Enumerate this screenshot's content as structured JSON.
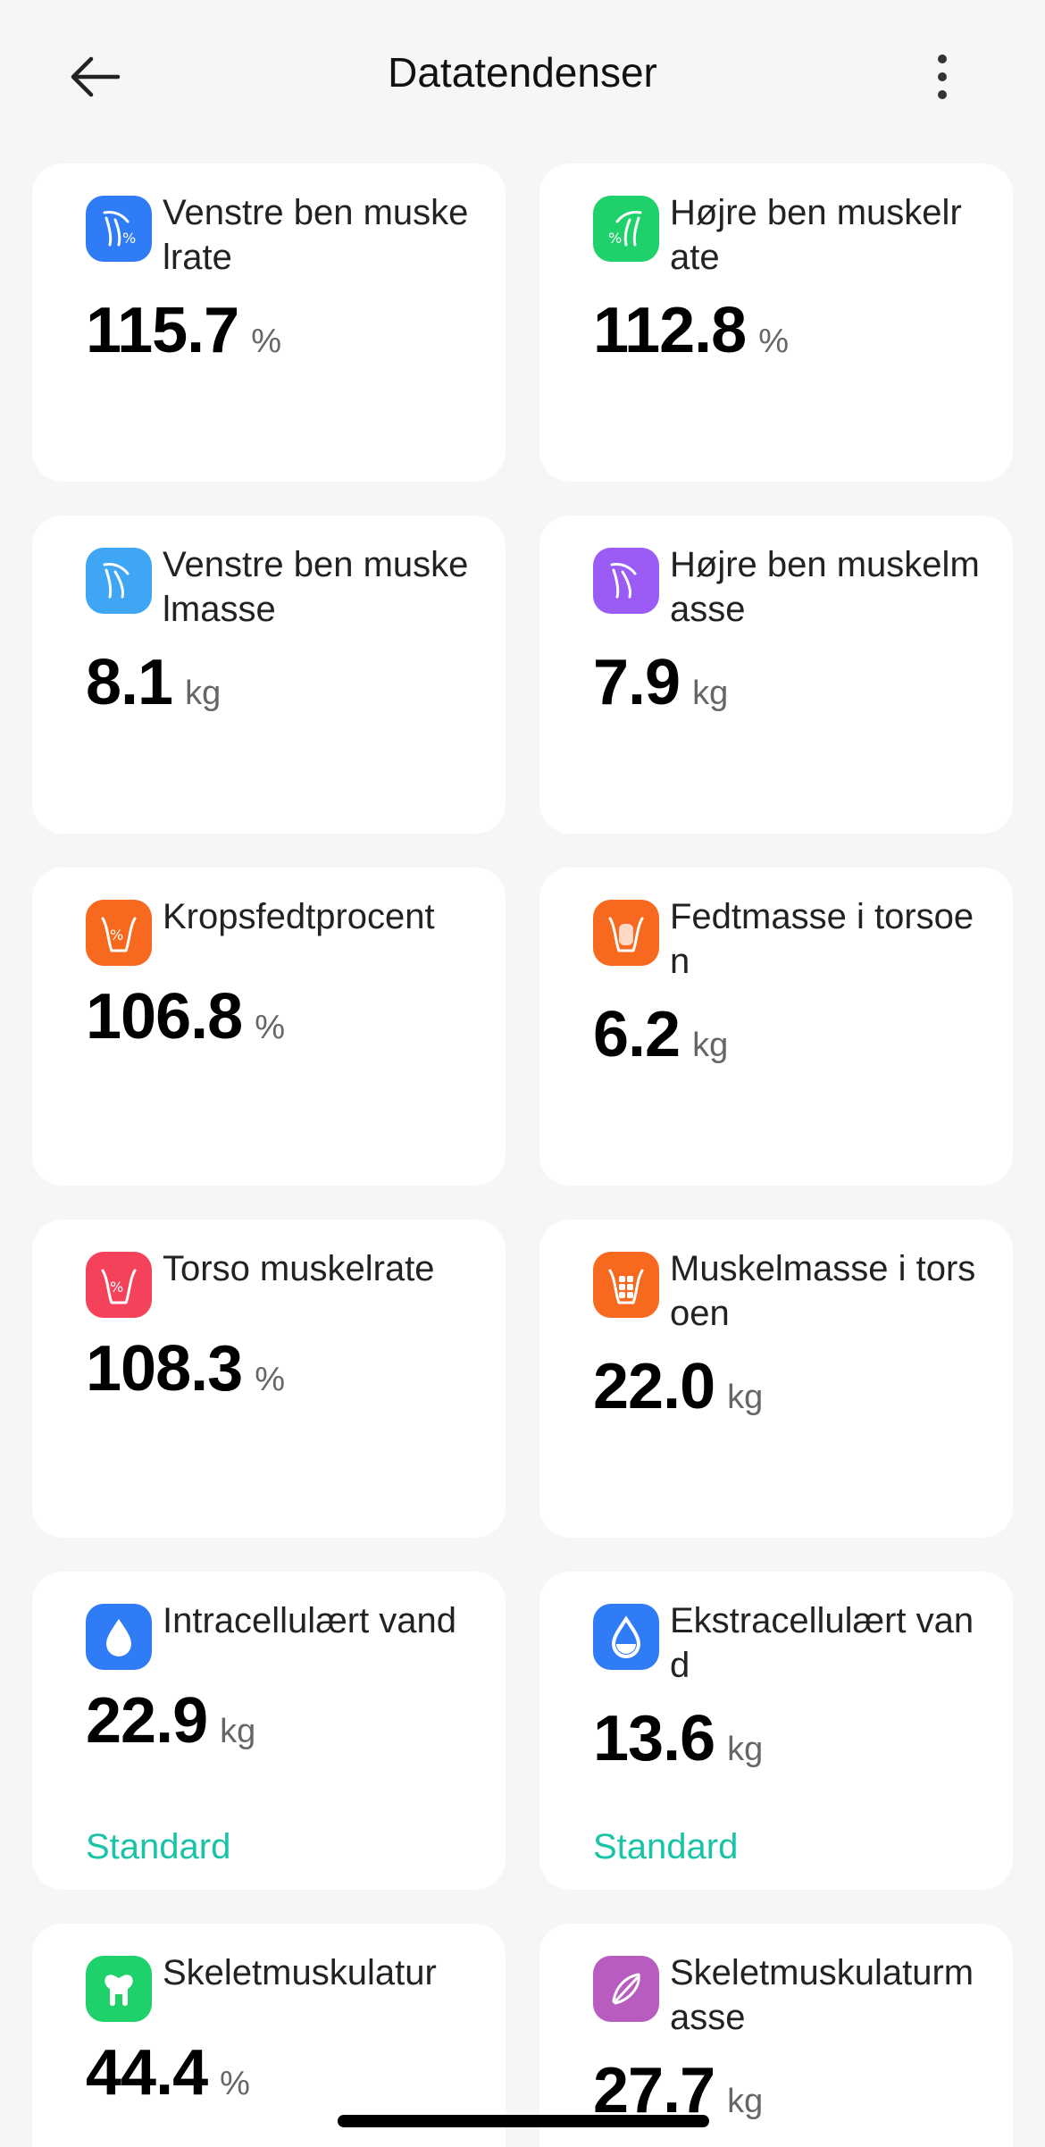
{
  "header": {
    "title": "Datatendenser"
  },
  "cards": [
    {
      "label": "Venstre ben muskelrate",
      "value": "115.7",
      "unit": "%",
      "status": "",
      "icon": "left-leg-muscle-rate-icon",
      "color": "#2f7cf6"
    },
    {
      "label": "Højre ben muskelrate",
      "value": "112.8",
      "unit": "%",
      "status": "",
      "icon": "right-leg-muscle-rate-icon",
      "color": "#1fd16b"
    },
    {
      "label": "Venstre ben muskelmasse",
      "value": "8.1",
      "unit": "kg",
      "status": "",
      "icon": "left-leg-muscle-mass-icon",
      "color": "#3fa6f5"
    },
    {
      "label": "Højre ben muskelmasse",
      "value": "7.9",
      "unit": "kg",
      "status": "",
      "icon": "right-leg-muscle-mass-icon",
      "color": "#9b5cf5"
    },
    {
      "label": "Kropsfedtprocent",
      "value": "106.8",
      "unit": "%",
      "status": "",
      "icon": "body-fat-percent-icon",
      "color": "#f6691e"
    },
    {
      "label": "Fedtmasse i torsoen",
      "value": "6.2",
      "unit": "kg",
      "status": "",
      "icon": "torso-fat-mass-icon",
      "color": "#f6691e"
    },
    {
      "label": "Torso muskelrate",
      "value": "108.3",
      "unit": "%",
      "status": "",
      "icon": "torso-muscle-rate-icon",
      "color": "#f5425b"
    },
    {
      "label": "Muskelmasse i torsoen",
      "value": "22.0",
      "unit": "kg",
      "status": "",
      "icon": "torso-muscle-mass-icon",
      "color": "#f6691e"
    },
    {
      "label": "Intracellulært vand",
      "value": "22.9",
      "unit": "kg",
      "status": "Standard",
      "icon": "intracellular-water-icon",
      "color": "#2f7cf6"
    },
    {
      "label": "Ekstracellulært vand",
      "value": "13.6",
      "unit": "kg",
      "status": "Standard",
      "icon": "extracellular-water-icon",
      "color": "#2f7cf6"
    },
    {
      "label": "Skeletmuskulatur",
      "value": "44.4",
      "unit": "%",
      "status": "",
      "icon": "skeletal-muscle-icon",
      "color": "#1fd16b"
    },
    {
      "label": "Skeletmuskulaturmasse",
      "value": "27.7",
      "unit": "kg",
      "status": "",
      "icon": "skeletal-muscle-mass-icon",
      "color": "#b85cc0"
    }
  ]
}
